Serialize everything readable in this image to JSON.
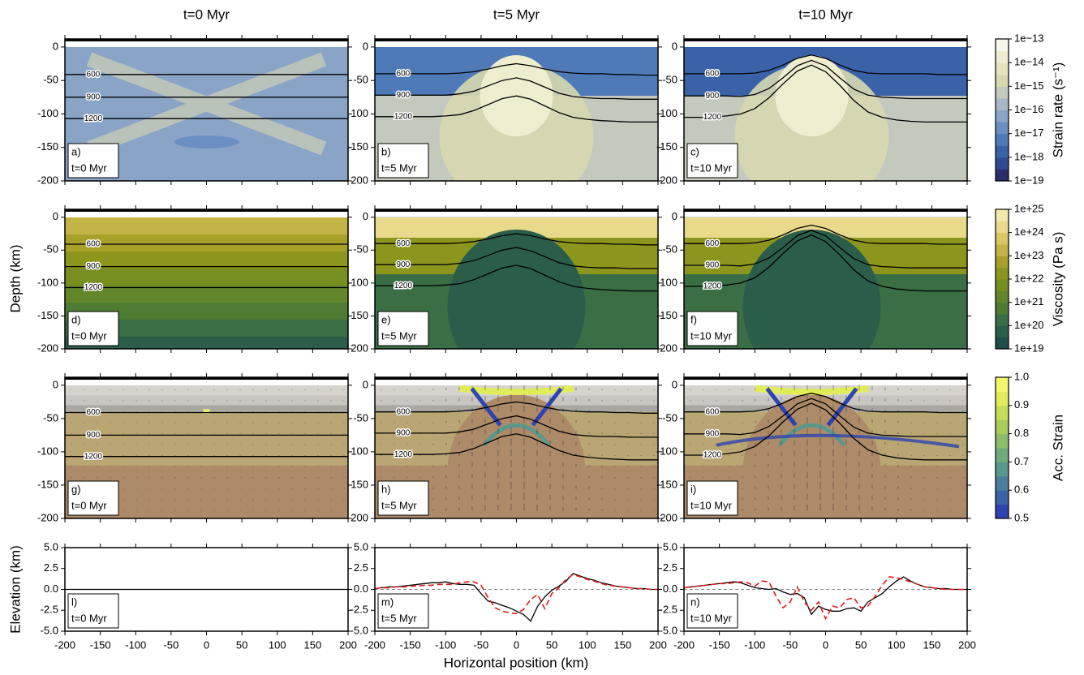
{
  "chart_data": {
    "type": "model-panels",
    "column_titles": [
      "t=0 Myr",
      "t=5 Myr",
      "t=10 Myr"
    ],
    "depth_label": "Depth (km)",
    "elevation_label": "Elevation (km)",
    "x_label": "Horizontal position (km)",
    "xlim": [
      -200,
      200
    ],
    "xticks": [
      -200,
      -150,
      -100,
      -50,
      0,
      50,
      100,
      150,
      200
    ],
    "isotherm_x": [
      -200,
      -180,
      -160,
      -140,
      -120,
      -100,
      -80,
      -60,
      -40,
      -20,
      0,
      20,
      40,
      60,
      80,
      100,
      120,
      140,
      160,
      180,
      200
    ],
    "isotherms": [
      [
        {
          "T": 600,
          "depth": [
            -41,
            -41,
            -41,
            -41,
            -41,
            -41,
            -41,
            -41,
            -41,
            -41,
            -41,
            -41,
            -41,
            -41,
            -41,
            -41,
            -41,
            -41,
            -41,
            -41,
            -41
          ]
        },
        {
          "T": 900,
          "depth": [
            -75,
            -75,
            -75,
            -75,
            -75,
            -75,
            -75,
            -75,
            -75,
            -75,
            -75,
            -75,
            -75,
            -75,
            -75,
            -75,
            -75,
            -75,
            -75,
            -75,
            -75
          ]
        },
        {
          "T": 1200,
          "depth": [
            -107,
            -107,
            -107,
            -107,
            -107,
            -107,
            -107,
            -107,
            -107,
            -107,
            -107,
            -107,
            -107,
            -107,
            -107,
            -107,
            -107,
            -107,
            -107,
            -107,
            -107
          ]
        }
      ],
      [
        {
          "T": 600,
          "depth": [
            -40,
            -40,
            -40,
            -40,
            -40,
            -40,
            -39,
            -37,
            -33,
            -28,
            -25,
            -28,
            -33,
            -37,
            -39,
            -40,
            -40,
            -41,
            -41,
            -42,
            -42
          ]
        },
        {
          "T": 900,
          "depth": [
            -72,
            -72,
            -72,
            -72,
            -72,
            -72,
            -70,
            -66,
            -58,
            -50,
            -46,
            -51,
            -60,
            -69,
            -74,
            -76,
            -77,
            -77,
            -78,
            -78,
            -78
          ]
        },
        {
          "T": 1200,
          "depth": [
            -104,
            -104,
            -104,
            -104,
            -104,
            -103,
            -101,
            -95,
            -86,
            -77,
            -73,
            -78,
            -88,
            -98,
            -105,
            -108,
            -110,
            -111,
            -112,
            -112,
            -112
          ]
        }
      ],
      [
        {
          "T": 600,
          "depth": [
            -40,
            -40,
            -40,
            -40,
            -40,
            -39,
            -35,
            -27,
            -17,
            -12,
            -17,
            -27,
            -35,
            -39,
            -40,
            -40,
            -40,
            -40,
            -41,
            -41,
            -41
          ]
        },
        {
          "T": 900,
          "depth": [
            -73,
            -73,
            -73,
            -73,
            -74,
            -71,
            -62,
            -46,
            -28,
            -20,
            -28,
            -46,
            -63,
            -72,
            -75,
            -76,
            -77,
            -77,
            -77,
            -77,
            -77
          ]
        },
        {
          "T": 1200,
          "depth": [
            -105,
            -105,
            -105,
            -103,
            -100,
            -92,
            -76,
            -55,
            -36,
            -27,
            -37,
            -57,
            -80,
            -97,
            -105,
            -109,
            -111,
            -112,
            -112,
            -112,
            -112
          ]
        }
      ]
    ],
    "rows": [
      {
        "type": "strain-rate",
        "ylim": [
          -200,
          12
        ],
        "yticks": [
          0,
          -50,
          -100,
          -150,
          -200
        ],
        "panels": [
          {
            "label": "a)",
            "time": "t=0 Myr"
          },
          {
            "label": "b)",
            "time": "t=5 Myr"
          },
          {
            "label": "c)",
            "time": "t=10 Myr"
          }
        ],
        "colorbar": {
          "label": "Strain rate (s⁻¹)",
          "log": true,
          "lim": [
            1e-19,
            1e-13
          ],
          "ticks": [
            {
              "value": 1e-13,
              "label": "1e−13"
            },
            {
              "value": 1e-14,
              "label": "1e−14"
            },
            {
              "value": 1e-15,
              "label": "1e−15"
            },
            {
              "value": 1e-16,
              "label": "1e−16"
            },
            {
              "value": 1e-17,
              "label": "1e−17"
            },
            {
              "value": 1e-18,
              "label": "1e−18"
            },
            {
              "value": 1e-19,
              "label": "1e−19"
            }
          ],
          "colors": [
            "#2b2e6b",
            "#2f4a93",
            "#3a62a8",
            "#4f7ab8",
            "#6b8fc2",
            "#8aa4c8",
            "#a8b7c6",
            "#c3c9bd",
            "#d8d8b0",
            "#e6e4bb",
            "#efedd0",
            "#f7f6ea"
          ]
        }
      },
      {
        "type": "viscosity",
        "ylim": [
          -200,
          12
        ],
        "yticks": [
          0,
          -50,
          -100,
          -150,
          -200
        ],
        "panels": [
          {
            "label": "d)",
            "time": "t=0 Myr"
          },
          {
            "label": "e)",
            "time": "t=5 Myr"
          },
          {
            "label": "f)",
            "time": "t=10 Myr"
          }
        ],
        "colorbar": {
          "label": "Viscosity (Pa s)",
          "log": true,
          "lim": [
            1e+19,
            1e+25
          ],
          "ticks": [
            {
              "value": 1e+25,
              "label": "1e+25"
            },
            {
              "value": 1e+24,
              "label": "1e+24"
            },
            {
              "value": 1e+23,
              "label": "1e+23"
            },
            {
              "value": 1e+22,
              "label": "1e+22"
            },
            {
              "value": 1e+21,
              "label": "1e+21"
            },
            {
              "value": 1e+20,
              "label": "1e+20"
            },
            {
              "value": 1e+19,
              "label": "1e+19"
            }
          ],
          "colors": [
            "#1e4d4a",
            "#2a5e4b",
            "#3a6e44",
            "#4e7c33",
            "#62862a",
            "#778e20",
            "#8c951c",
            "#a7a12a",
            "#c2b447",
            "#d9c767",
            "#e9d98a",
            "#f4e7ab"
          ]
        }
      },
      {
        "type": "composition",
        "ylim": [
          -200,
          12
        ],
        "yticks": [
          0,
          -50,
          -100,
          -150,
          -200
        ],
        "panels": [
          {
            "label": "g)",
            "time": "t=0 Myr"
          },
          {
            "label": "h)",
            "time": "t=5 Myr"
          },
          {
            "label": "i)",
            "time": "t=10 Myr"
          }
        ],
        "colorbar": {
          "label": "Acc. Strain",
          "log": false,
          "lim": [
            0.5,
            1
          ],
          "ticks": [
            {
              "value": 1,
              "label": "1.0"
            },
            0.9,
            0.8,
            0.7,
            0.6,
            0.5
          ],
          "colors": [
            "#2c44b0",
            "#3a63a8",
            "#4a7e9c",
            "#5a978c",
            "#71ab7c",
            "#8cbd6a",
            "#a8cd5c",
            "#c5dd58",
            "#e2ec5a",
            "#f4f56a"
          ]
        }
      },
      {
        "type": "elevation",
        "ylim": [
          -5,
          5
        ],
        "yticks": [
          {
            "value": 5,
            "label": "5.0"
          },
          2.5,
          {
            "value": 0,
            "label": "0.0"
          },
          -2.5,
          {
            "value": -5,
            "label": "-5.0"
          }
        ],
        "x": [
          -200,
          -190,
          -180,
          -170,
          -160,
          -150,
          -140,
          -130,
          -120,
          -110,
          -100,
          -90,
          -80,
          -70,
          -60,
          -50,
          -40,
          -30,
          -20,
          -10,
          0,
          10,
          20,
          30,
          40,
          50,
          60,
          70,
          80,
          90,
          100,
          110,
          120,
          130,
          140,
          150,
          160,
          170,
          180,
          190,
          200
        ],
        "panels": [
          {
            "label": "l)",
            "time": "t=0 Myr",
            "series": [
              {
                "color": "#000000",
                "dashed": false,
                "values": [
                  0,
                  0,
                  0,
                  0,
                  0,
                  0,
                  0,
                  0,
                  0,
                  0,
                  0,
                  0,
                  0,
                  0,
                  0,
                  0,
                  0,
                  0,
                  0,
                  0,
                  0,
                  0,
                  0,
                  0,
                  0,
                  0,
                  0,
                  0,
                  0,
                  0,
                  0,
                  0,
                  0,
                  0,
                  0,
                  0,
                  0,
                  0,
                  0,
                  0,
                  0
                ]
              }
            ]
          },
          {
            "label": "m)",
            "time": "t=5 Myr",
            "series": [
              {
                "color": "#000000",
                "dashed": false,
                "values": [
                  0.1,
                  0.2,
                  0.3,
                  0.3,
                  0.4,
                  0.5,
                  0.6,
                  0.7,
                  0.8,
                  0.8,
                  0.9,
                  0.7,
                  0.6,
                  0.6,
                  0.5,
                  -0.5,
                  -1.4,
                  -1.6,
                  -1.9,
                  -2.2,
                  -2.6,
                  -3.0,
                  -3.8,
                  -2.0,
                  -0.9,
                  -0.1,
                  0.4,
                  1.0,
                  1.9,
                  1.6,
                  1.3,
                  1.1,
                  0.8,
                  0.6,
                  0.4,
                  0.3,
                  0.2,
                  0.1,
                  0.1,
                  0,
                  0
                ]
              },
              {
                "color": "#e41a1c",
                "dashed": true,
                "values": [
                  0.1,
                  0.2,
                  0.2,
                  0.3,
                  0.3,
                  0.4,
                  0.4,
                  0.5,
                  0.5,
                  0.6,
                  0.6,
                  0.6,
                  0.8,
                  0.9,
                  0.9,
                  0.5,
                  -1.0,
                  -2.2,
                  -2.6,
                  -2.8,
                  -2.9,
                  -2.4,
                  -1.2,
                  -0.6,
                  -2.3,
                  -0.5,
                  0.2,
                  1.2,
                  1.8,
                  1.5,
                  1.2,
                  1.0,
                  0.7,
                  0.5,
                  0.4,
                  0.3,
                  0.2,
                  0.1,
                  0.1,
                  0,
                  0
                ]
              }
            ]
          },
          {
            "label": "n)",
            "time": "t=10 Myr",
            "series": [
              {
                "color": "#000000",
                "dashed": false,
                "values": [
                  0.2,
                  0.3,
                  0.4,
                  0.5,
                  0.6,
                  0.7,
                  0.8,
                  0.9,
                  0.8,
                  0.5,
                  0.2,
                  0.1,
                  0,
                  0.1,
                  -0.3,
                  -0.6,
                  -0.5,
                  -1.0,
                  -3.0,
                  -2.0,
                  -2.4,
                  -2.6,
                  -2.6,
                  -2.3,
                  -2.2,
                  -2.6,
                  -1.5,
                  -1.0,
                  -0.5,
                  0.3,
                  1.0,
                  1.5,
                  1.0,
                  0.6,
                  0.3,
                  0.2,
                  0.1,
                  0.1,
                  0,
                  0,
                  0
                ]
              },
              {
                "color": "#e41a1c",
                "dashed": true,
                "values": [
                  0.2,
                  0.3,
                  0.4,
                  0.5,
                  0.6,
                  0.7,
                  0.7,
                  0.8,
                  0.9,
                  0.8,
                  0.4,
                  1.0,
                  0.9,
                  -0.8,
                  -2.2,
                  -1.5,
                  0.3,
                  -1.5,
                  -2.5,
                  -1.5,
                  -3.5,
                  -2.0,
                  -2.2,
                  -1.2,
                  -1.0,
                  -2.2,
                  -2.0,
                  -0.8,
                  0.5,
                  1.5,
                  1.4,
                  1.2,
                  0.9,
                  0.6,
                  0.3,
                  0.2,
                  0.1,
                  0,
                  0,
                  0,
                  0
                ]
              }
            ]
          }
        ]
      }
    ]
  }
}
